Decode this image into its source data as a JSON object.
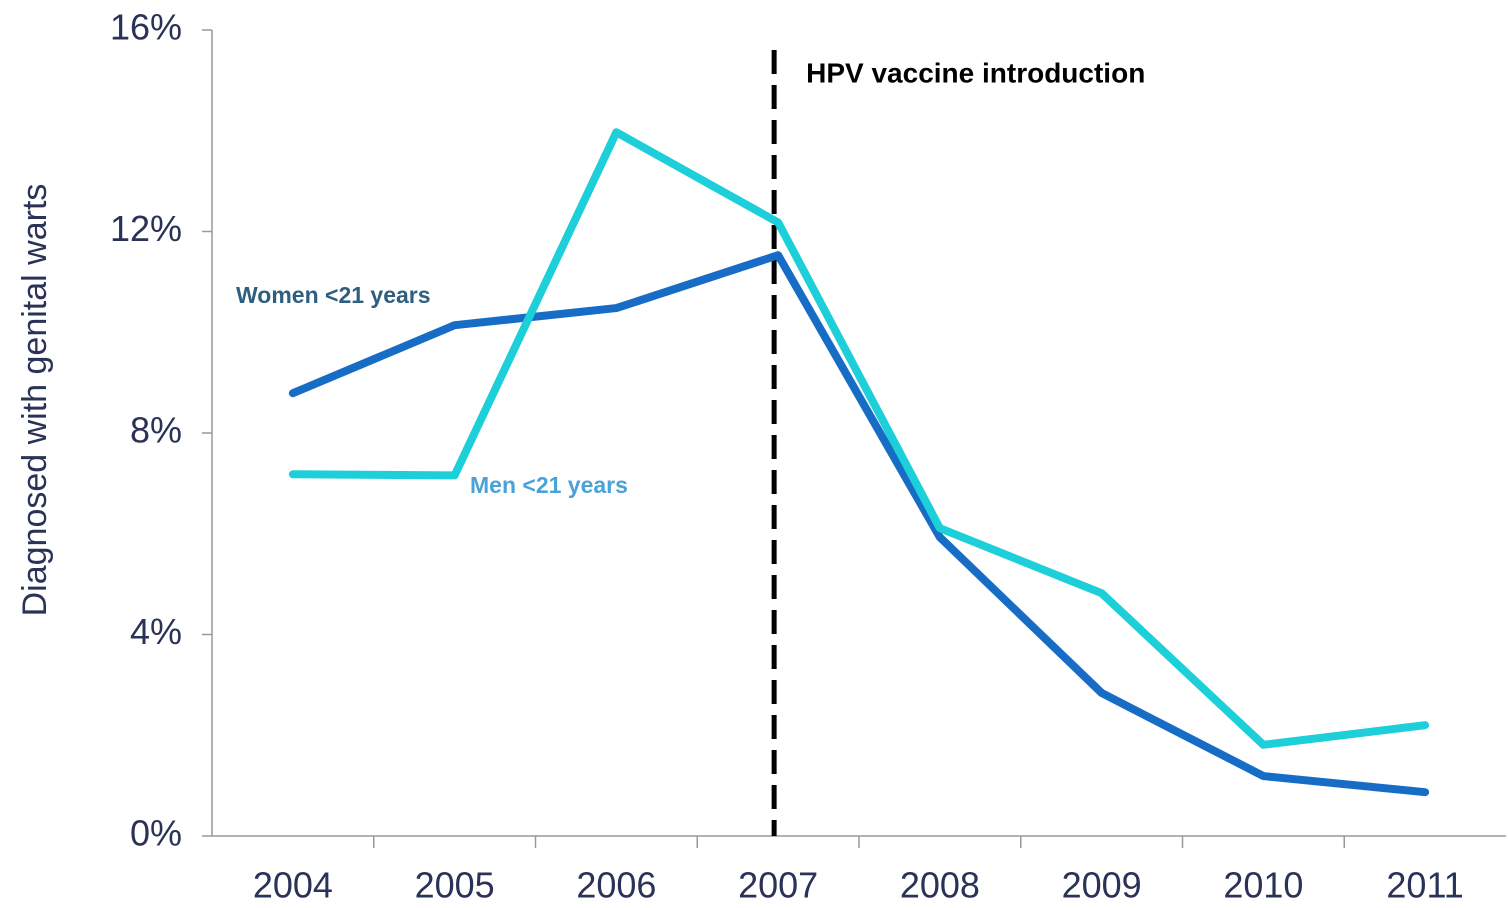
{
  "chart_data": {
    "type": "line",
    "y_label": "Diagnosed with genital warts",
    "categories": [
      "2004",
      "2005",
      "2006",
      "2007",
      "2008",
      "2009",
      "2010",
      "2011"
    ],
    "series": [
      {
        "name": "Women <21 years",
        "color": "#176cc6",
        "label_color": "#2e5f80",
        "values": [
          8.79,
          10.14,
          10.48,
          11.53,
          5.93,
          2.84,
          1.19,
          0.87
        ]
      },
      {
        "name": "Men <21 years",
        "color": "#1ccfd8",
        "label_color": "#4aa3d8",
        "values": [
          7.18,
          7.16,
          13.97,
          12.18,
          6.11,
          4.82,
          1.81,
          2.2
        ]
      }
    ],
    "annotation": {
      "x": "2007",
      "label": "HPV vaccine introduction"
    },
    "ylim": [
      0,
      16
    ],
    "yticks": [
      {
        "value": 0,
        "label": "0%"
      },
      {
        "value": 4,
        "label": "4%"
      },
      {
        "value": 8,
        "label": "8%"
      },
      {
        "value": 12,
        "label": "12%"
      },
      {
        "value": 16,
        "label": "16%"
      }
    ]
  }
}
